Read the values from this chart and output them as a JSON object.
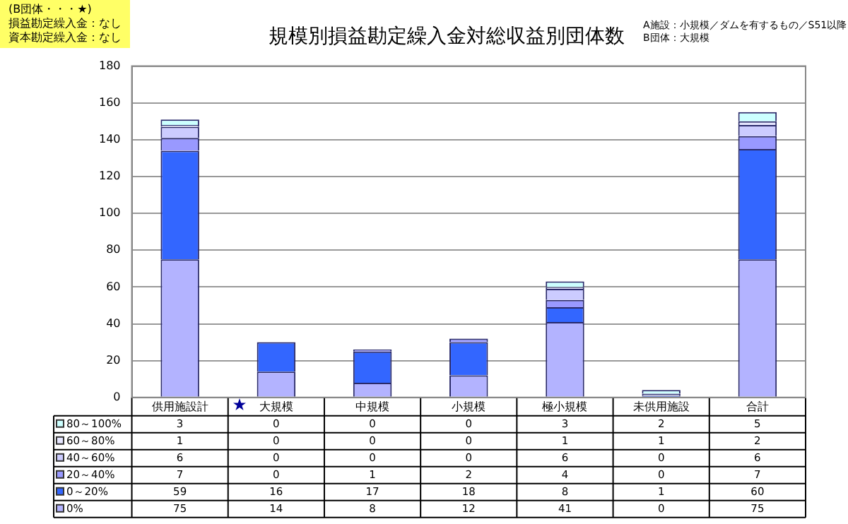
{
  "chart_data": {
    "type": "bar",
    "title": "規模別損益勘定繰入金対総収益別団体数",
    "annotations": [
      "(B団体・・・★)",
      "損益勘定繰入金：なし",
      "資本勘定繰入金：なし",
      "A施設：小規模／ダムを有するもの／S51以降",
      "B団体：大規模"
    ],
    "categories": [
      "供用施設計",
      "大規模",
      "中規模",
      "小規模",
      "極小規模",
      "未供用施設",
      "合計"
    ],
    "stacked": true,
    "data_labels": true,
    "legend": "bottom",
    "grid": "y",
    "ylim": [
      0,
      180
    ],
    "yticks": [
      0,
      20,
      40,
      60,
      80,
      100,
      120,
      140,
      160,
      180
    ],
    "series": [
      {
        "name": "0%",
        "color": "#b3b3ff",
        "values": [
          75,
          14,
          8,
          12,
          41,
          0,
          75
        ]
      },
      {
        "name": "0～20%",
        "color": "#3366ff",
        "values": [
          59,
          16,
          17,
          18,
          8,
          1,
          60
        ]
      },
      {
        "name": "20～40%",
        "color": "#9999ff",
        "values": [
          7,
          0,
          1,
          2,
          4,
          0,
          7
        ]
      },
      {
        "name": "40～60%",
        "color": "#ccccff",
        "values": [
          6,
          0,
          0,
          0,
          6,
          0,
          6
        ]
      },
      {
        "name": "60～80%",
        "color": "#e6e6ff",
        "values": [
          1,
          0,
          0,
          0,
          1,
          1,
          2
        ]
      },
      {
        "name": "80～100%",
        "color": "#ccffff",
        "values": [
          3,
          0,
          0,
          0,
          3,
          2,
          5
        ]
      }
    ]
  }
}
